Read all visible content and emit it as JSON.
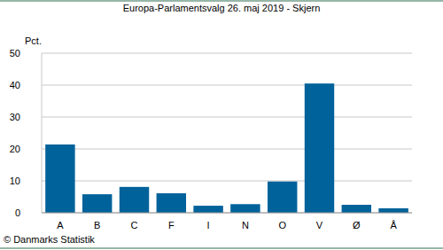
{
  "chart_data": {
    "type": "bar",
    "title": "Europa-Parlamentsvalg 26. maj 2019 - Skjern",
    "y_label": "Pct.",
    "source": "© Danmarks Statistik",
    "categories": [
      "A",
      "B",
      "C",
      "F",
      "I",
      "N",
      "O",
      "V",
      "Ø",
      "Å"
    ],
    "values": [
      21.4,
      5.8,
      8.1,
      6.1,
      2.2,
      2.7,
      9.8,
      40.5,
      2.5,
      1.4
    ],
    "color": "#00629b",
    "ylim": [
      0,
      50
    ],
    "yticks": [
      0,
      10,
      20,
      30,
      40,
      50
    ],
    "grid": true
  }
}
